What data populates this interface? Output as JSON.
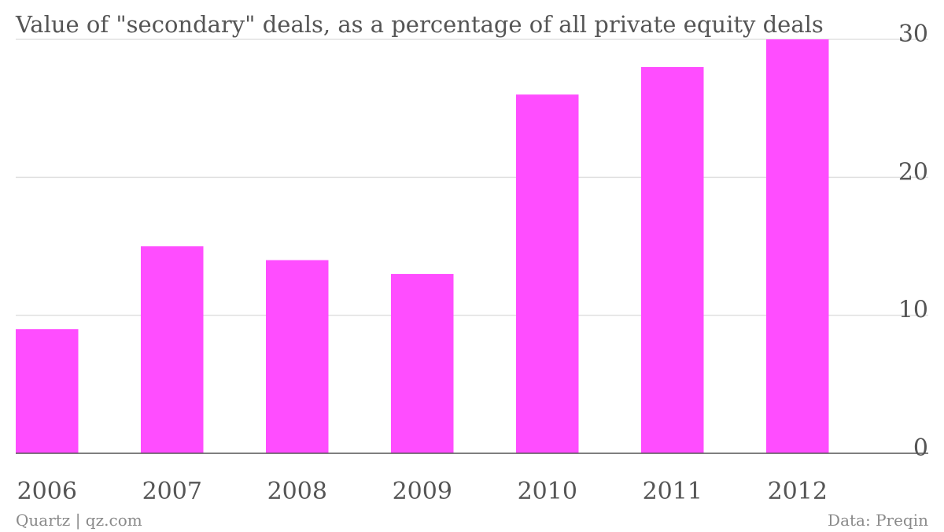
{
  "chart_data": {
    "type": "bar",
    "title": "Value of \"secondary\" deals, as a percentage of all private equity deals",
    "categories": [
      "2006",
      "2007",
      "2008",
      "2009",
      "2010",
      "2011",
      "2012"
    ],
    "values": [
      9,
      15,
      14,
      13,
      26,
      28,
      30
    ],
    "ylim": [
      0,
      30
    ],
    "yticks": [
      0,
      10,
      20,
      30
    ],
    "y_axis_side": "right",
    "grid": true,
    "xlabel": "",
    "ylabel": "",
    "bar_color": "#ff4dff",
    "grid_color": "#e0e0e0",
    "axis_color": "#555555"
  },
  "footer": {
    "source_left": "Quartz | qz.com",
    "source_right": "Data: Preqin"
  }
}
